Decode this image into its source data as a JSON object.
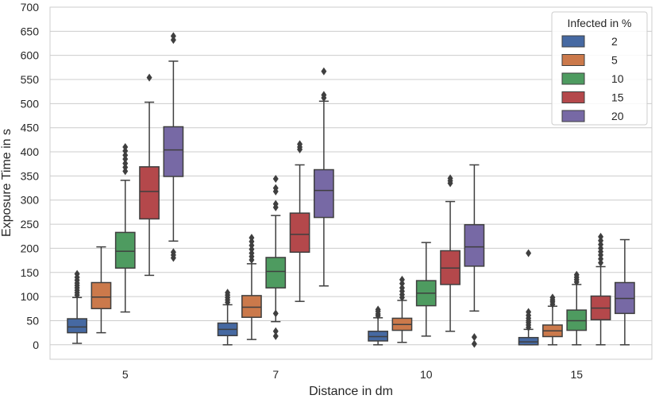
{
  "chart_data": {
    "type": "box",
    "xlabel": "Distance in dm",
    "ylabel": "Exposure Time in s",
    "ylim": [
      -30,
      700
    ],
    "yticks": [
      0,
      50,
      100,
      150,
      200,
      250,
      300,
      350,
      400,
      450,
      500,
      550,
      600,
      650,
      700
    ],
    "grid": true,
    "categories": [
      "5",
      "7",
      "10",
      "15"
    ],
    "legend": {
      "title": "Infected in %",
      "position": "top-right"
    },
    "series": [
      {
        "name": "2",
        "color": "#4c72b0",
        "boxes": [
          {
            "min": 3,
            "q1": 25,
            "median": 37,
            "q3": 54,
            "max": 98,
            "outliers": [
              103,
              108,
              113,
              118,
              123,
              128,
              134,
              140,
              147
            ]
          },
          {
            "min": 0,
            "q1": 19,
            "median": 32,
            "q3": 45,
            "max": 83,
            "outliers": [
              88,
              93,
              98,
              103,
              108
            ]
          },
          {
            "min": 0,
            "q1": 8,
            "median": 17,
            "q3": 28,
            "max": 56,
            "outliers": [
              60,
              64,
              69,
              73
            ]
          },
          {
            "min": 0,
            "q1": 0,
            "median": 6,
            "q3": 15,
            "max": 32,
            "outliers": [
              36,
              41,
              46,
              50,
              55,
              61,
              68,
              190
            ]
          }
        ]
      },
      {
        "name": "5",
        "color": "#dd8452",
        "boxes": [
          {
            "min": 25,
            "q1": 75,
            "median": 99,
            "q3": 129,
            "max": 203,
            "outliers": []
          },
          {
            "min": 11,
            "q1": 57,
            "median": 78,
            "q3": 102,
            "max": 168,
            "outliers": [
              176,
              183,
              190,
              198,
              206,
              214,
              222
            ]
          },
          {
            "min": 5,
            "q1": 30,
            "median": 42,
            "q3": 55,
            "max": 92,
            "outliers": [
              98,
              104,
              111,
              118,
              127,
              135
            ]
          },
          {
            "min": 0,
            "q1": 17,
            "median": 29,
            "q3": 41,
            "max": 80,
            "outliers": [
              84,
              89,
              93,
              98
            ]
          }
        ]
      },
      {
        "name": "10",
        "color": "#55a868",
        "boxes": [
          {
            "min": 68,
            "q1": 159,
            "median": 194,
            "q3": 233,
            "max": 341,
            "outliers": [
              360,
              368,
              376,
              385,
              393,
              402,
              410
            ]
          },
          {
            "min": 48,
            "q1": 118,
            "median": 152,
            "q3": 181,
            "max": 268,
            "outliers": [
              18,
              28,
              65,
              285,
              292,
              318,
              325,
              344
            ]
          },
          {
            "min": 18,
            "q1": 81,
            "median": 107,
            "q3": 133,
            "max": 212,
            "outliers": []
          },
          {
            "min": 0,
            "q1": 30,
            "median": 50,
            "q3": 72,
            "max": 125,
            "outliers": [
              130,
              135,
              140,
              145
            ]
          }
        ]
      },
      {
        "name": "15",
        "color": "#c44e52",
        "boxes": [
          {
            "min": 144,
            "q1": 261,
            "median": 318,
            "q3": 369,
            "max": 503,
            "outliers": [
              554
            ]
          },
          {
            "min": 90,
            "q1": 192,
            "median": 229,
            "q3": 273,
            "max": 373,
            "outliers": [
              405,
              410,
              416
            ]
          },
          {
            "min": 28,
            "q1": 125,
            "median": 159,
            "q3": 195,
            "max": 297,
            "outliers": [
              335,
              340,
              345
            ]
          },
          {
            "min": 0,
            "q1": 52,
            "median": 76,
            "q3": 101,
            "max": 162,
            "outliers": [
              170,
              178,
              186,
              193,
              200,
              208,
              216,
              224
            ]
          }
        ]
      },
      {
        "name": "20",
        "color": "#8172b3",
        "boxes": [
          {
            "min": 215,
            "q1": 349,
            "median": 404,
            "q3": 452,
            "max": 588,
            "outliers": [
              180,
              186,
              192,
              632,
              640
            ]
          },
          {
            "min": 122,
            "q1": 264,
            "median": 320,
            "q3": 363,
            "max": 505,
            "outliers": [
              512,
              518,
              567
            ]
          },
          {
            "min": 70,
            "q1": 163,
            "median": 203,
            "q3": 249,
            "max": 373,
            "outliers": [
              2,
              16
            ]
          },
          {
            "min": 0,
            "q1": 65,
            "median": 96,
            "q3": 129,
            "max": 218,
            "outliers": []
          }
        ]
      }
    ]
  }
}
